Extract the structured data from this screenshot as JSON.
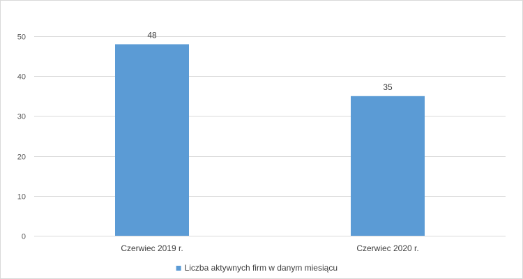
{
  "chart_data": {
    "type": "bar",
    "categories": [
      "Czerwiec 2019 r.",
      "Czerwiec 2020 r."
    ],
    "series": [
      {
        "name": "Liczba aktywnych firm w danym miesiącu",
        "values": [
          48,
          35
        ],
        "color": "#5b9bd5"
      }
    ],
    "yticks": [
      0,
      10,
      20,
      30,
      40,
      50
    ],
    "ylim": [
      0,
      50
    ],
    "grid": true,
    "legend_position": "bottom",
    "gridline_color": "#d9d9d9"
  }
}
